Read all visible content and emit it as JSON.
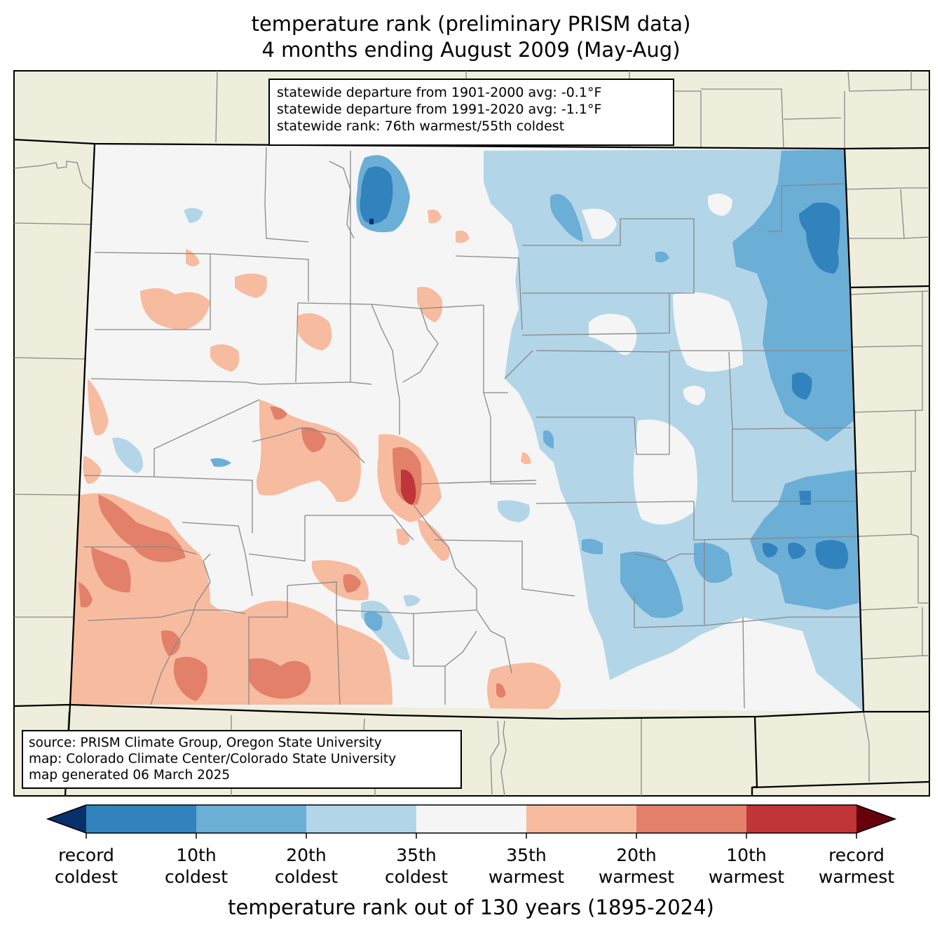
{
  "title": {
    "line1": "temperature rank (preliminary PRISM data)",
    "line2": "4 months ending August 2009 (May-Aug)"
  },
  "stats": {
    "line1": "statewide departure from 1901-2000 avg: -0.1°F",
    "line2": "statewide departure from 1991-2020 avg: -1.1°F",
    "line3": "statewide rank: 76th warmest/55th coldest"
  },
  "source": {
    "line1": "source: PRISM Climate Group, Oregon State University",
    "line2": "map: Colorado Climate Center/Colorado State University",
    "line3": "map generated 06 March 2025"
  },
  "colorbar": {
    "title": "temperature rank out of 130 years (1895-2024)",
    "ticks": [
      {
        "line1": "record",
        "line2": "coldest"
      },
      {
        "line1": "10th",
        "line2": "coldest"
      },
      {
        "line1": "20th",
        "line2": "coldest"
      },
      {
        "line1": "35th",
        "line2": "coldest"
      },
      {
        "line1": "35th",
        "line2": "warmest"
      },
      {
        "line1": "20th",
        "line2": "warmest"
      },
      {
        "line1": "10th",
        "line2": "warmest"
      },
      {
        "line1": "record",
        "line2": "warmest"
      }
    ],
    "colors": [
      "#08306b",
      "#3182bd",
      "#6baed6",
      "#b3d5e8",
      "#f5f5f5",
      "#f7bba0",
      "#e2806a",
      "#c03537",
      "#67000d"
    ]
  },
  "map_colors": {
    "neighbor_fill": "#efeedc",
    "state_fill": "#f5f5f5",
    "county_line": "#888888",
    "border_line": "#000000"
  }
}
